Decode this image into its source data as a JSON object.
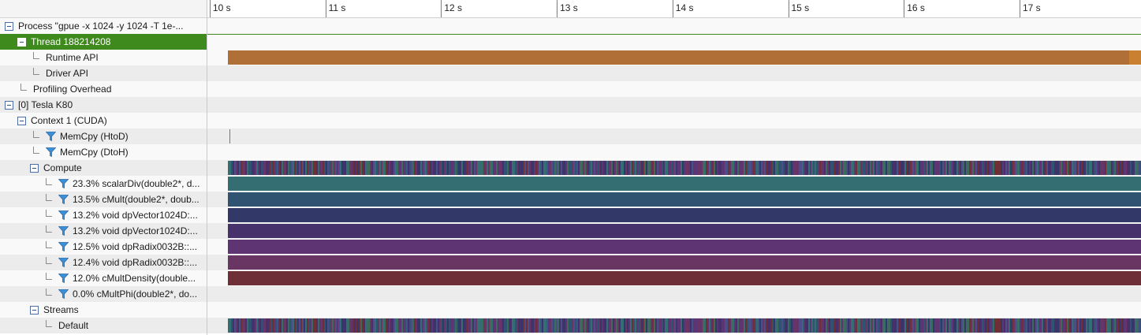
{
  "timeline": {
    "ticks": [
      "10 s",
      "11 s",
      "12 s",
      "13 s",
      "14 s",
      "15 s",
      "16 s",
      "17 s"
    ],
    "view_start_s": 9.98,
    "view_end_s": 18.05,
    "kernel_start_s": 10.16,
    "kernel_end_s": 18.05,
    "runtime_start_s": 10.16,
    "runtime_end_s": 18.05,
    "runtime_tail_start_s": 17.95,
    "memcpy_htod_at_s": 10.17
  },
  "rows": [
    {
      "id": "process",
      "label": "Process \"gpue -x 1024 -y 1024 -T 1e-...",
      "level": 0,
      "kind": "expander",
      "style": "base"
    },
    {
      "id": "thread",
      "label": "Thread 188214208",
      "level": 1,
      "kind": "expander",
      "style": "selected"
    },
    {
      "id": "runtime-api",
      "label": "Runtime API",
      "level": 2,
      "kind": "leaf",
      "style": "base"
    },
    {
      "id": "driver-api",
      "label": "Driver API",
      "level": 2,
      "kind": "leaf",
      "style": "alt"
    },
    {
      "id": "profiling-overhead",
      "label": "Profiling Overhead",
      "level": 1,
      "kind": "leaf",
      "style": "base"
    },
    {
      "id": "tesla-k80",
      "label": "[0] Tesla K80",
      "level": 0,
      "kind": "expander",
      "style": "alt"
    },
    {
      "id": "context-1",
      "label": "Context 1 (CUDA)",
      "level": 1,
      "kind": "expander",
      "style": "base"
    },
    {
      "id": "memcpy-htod",
      "label": "MemCpy (HtoD)",
      "level": 2,
      "kind": "filter",
      "style": "alt"
    },
    {
      "id": "memcpy-dtoh",
      "label": "MemCpy (DtoH)",
      "level": 2,
      "kind": "filter",
      "style": "base"
    },
    {
      "id": "compute",
      "label": "Compute",
      "level": 2,
      "kind": "expander",
      "style": "alt"
    },
    {
      "id": "kernel-scalardiv",
      "label": "23.3% scalarDiv(double2*, d...",
      "level": 3,
      "kind": "filter",
      "style": "base"
    },
    {
      "id": "kernel-cmult",
      "label": "13.5% cMult(double2*, doub...",
      "level": 3,
      "kind": "filter",
      "style": "alt"
    },
    {
      "id": "kernel-dpvector-1",
      "label": "13.2% void dpVector1024D:...",
      "level": 3,
      "kind": "filter",
      "style": "base"
    },
    {
      "id": "kernel-dpvector-2",
      "label": "13.2% void dpVector1024D:...",
      "level": 3,
      "kind": "filter",
      "style": "alt"
    },
    {
      "id": "kernel-dpradix-1",
      "label": "12.5% void dpRadix0032B::...",
      "level": 3,
      "kind": "filter",
      "style": "base"
    },
    {
      "id": "kernel-dpradix-2",
      "label": "12.4% void dpRadix0032B::...",
      "level": 3,
      "kind": "filter",
      "style": "alt"
    },
    {
      "id": "kernel-cmultdensity",
      "label": "12.0% cMultDensity(double...",
      "level": 3,
      "kind": "filter",
      "style": "base"
    },
    {
      "id": "kernel-cmultphi",
      "label": "0.0% cMultPhi(double2*, do...",
      "level": 3,
      "kind": "filter",
      "style": "alt"
    },
    {
      "id": "streams",
      "label": "Streams",
      "level": 2,
      "kind": "expander",
      "style": "base"
    },
    {
      "id": "stream-default",
      "label": "Default",
      "level": 3,
      "kind": "leaf",
      "style": "alt"
    }
  ],
  "colors": {
    "runtime": "#b06f36",
    "runtime_tail": "#c98031",
    "selected_row": "#3f8a1d",
    "scalardiv": "#356e72",
    "cmult": "#2f5370",
    "dpvector_1": "#323868",
    "dpvector_2": "#46316c",
    "dpradix_1": "#5e3472",
    "dpradix_2": "#693563",
    "cmultdensity": "#6e3036",
    "stripe_palette": [
      "#356e72",
      "#2f5370",
      "#323868",
      "#46316c",
      "#5e3472",
      "#693563",
      "#6e3036",
      "#3d6a5a",
      "#4a4f8a"
    ]
  }
}
